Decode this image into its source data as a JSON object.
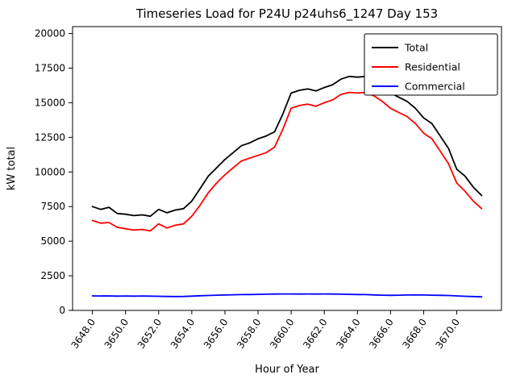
{
  "chart_data": {
    "type": "line",
    "title": "Timeseries Load for P24U p24uhs6_1247  Day 153",
    "xlabel": "Hour of Year",
    "ylabel": "kW total",
    "xlim": [
      3646.8,
      3672.7
    ],
    "ylim": [
      0,
      20500
    ],
    "grid": false,
    "legend_position": "upper right",
    "xtick_values": [
      3648,
      3650,
      3652,
      3654,
      3656,
      3658,
      3660,
      3662,
      3664,
      3666,
      3668,
      3670
    ],
    "xtick_labels": [
      "3648.0",
      "3650.0",
      "3652.0",
      "3654.0",
      "3656.0",
      "3658.0",
      "3660.0",
      "3662.0",
      "3664.0",
      "3666.0",
      "3668.0",
      "3670.0"
    ],
    "ytick_values": [
      0,
      2500,
      5000,
      7500,
      10000,
      12500,
      15000,
      17500,
      20000
    ],
    "ytick_labels": [
      "0",
      "2500",
      "5000",
      "7500",
      "10000",
      "12500",
      "15000",
      "17500",
      "20000"
    ],
    "x": [
      3648.0,
      3648.5,
      3649.0,
      3649.5,
      3650.0,
      3650.5,
      3651.0,
      3651.5,
      3652.0,
      3652.5,
      3653.0,
      3653.5,
      3654.0,
      3654.5,
      3655.0,
      3655.5,
      3656.0,
      3656.5,
      3657.0,
      3657.5,
      3658.0,
      3658.5,
      3659.0,
      3659.5,
      3660.0,
      3660.5,
      3661.0,
      3661.5,
      3662.0,
      3662.5,
      3663.0,
      3663.5,
      3664.0,
      3664.5,
      3665.0,
      3665.5,
      3666.0,
      3666.5,
      3667.0,
      3667.5,
      3668.0,
      3668.5,
      3669.0,
      3669.5,
      3670.0,
      3670.5,
      3671.0,
      3671.5
    ],
    "series": [
      {
        "name": "Total",
        "color": "#000000",
        "values": [
          7500,
          7300,
          7450,
          7000,
          6950,
          6850,
          6900,
          6800,
          7300,
          7050,
          7250,
          7350,
          7900,
          8800,
          9700,
          10300,
          10900,
          11400,
          11900,
          12100,
          12400,
          12600,
          12900,
          14200,
          15700,
          15900,
          16000,
          15850,
          16100,
          16300,
          16700,
          16900,
          16850,
          16900,
          16600,
          16200,
          15700,
          15400,
          15100,
          14600,
          13900,
          13500,
          12600,
          11700,
          10200,
          9700,
          8900,
          8300
        ]
      },
      {
        "name": "Residential",
        "color": "#ff0000",
        "values": [
          6500,
          6300,
          6350,
          6000,
          5900,
          5800,
          5850,
          5750,
          6250,
          5950,
          6150,
          6250,
          6800,
          7600,
          8500,
          9200,
          9800,
          10300,
          10800,
          11000,
          11200,
          11400,
          11800,
          13100,
          14600,
          14800,
          14900,
          14750,
          15000,
          15200,
          15600,
          15750,
          15700,
          15750,
          15500,
          15100,
          14600,
          14300,
          14000,
          13500,
          12800,
          12400,
          11500,
          10600,
          9200,
          8600,
          7900,
          7350
        ]
      },
      {
        "name": "Commercial",
        "color": "#0000ff",
        "values": [
          1050,
          1040,
          1050,
          1030,
          1040,
          1030,
          1040,
          1030,
          1020,
          1010,
          1000,
          1010,
          1030,
          1060,
          1080,
          1100,
          1110,
          1130,
          1140,
          1150,
          1160,
          1170,
          1180,
          1190,
          1190,
          1180,
          1190,
          1180,
          1190,
          1180,
          1170,
          1160,
          1150,
          1140,
          1120,
          1100,
          1090,
          1100,
          1110,
          1120,
          1110,
          1100,
          1090,
          1080,
          1050,
          1020,
          1000,
          980
        ]
      }
    ]
  }
}
